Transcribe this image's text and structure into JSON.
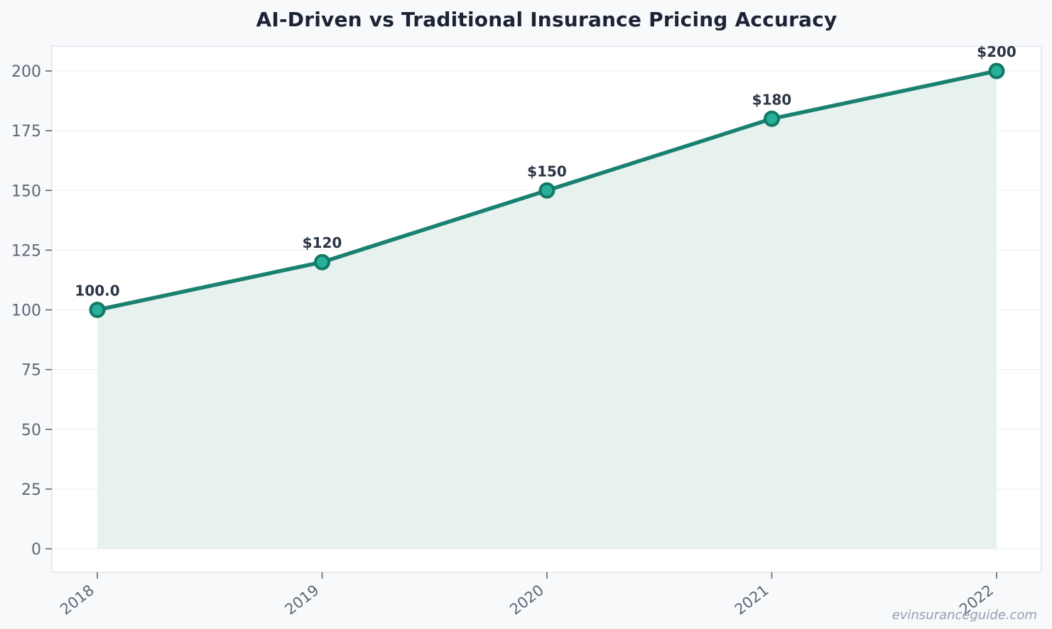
{
  "page": {
    "watermark": "evinsuranceguide.com"
  },
  "chart_data": {
    "type": "area",
    "title": "AI-Driven vs Traditional Insurance Pricing Accuracy",
    "categories": [
      "2018",
      "2019",
      "2020",
      "2021",
      "2022"
    ],
    "values": [
      100,
      120,
      150,
      180,
      200
    ],
    "point_labels": [
      "100.0",
      "$120",
      "$150",
      "$180",
      "$200"
    ],
    "xlabel": "",
    "ylabel": "",
    "ylim": [
      0,
      210
    ],
    "yticks": [
      0,
      25,
      50,
      75,
      100,
      125,
      150,
      175,
      200
    ],
    "grid": true,
    "legend": "none",
    "colors": {
      "page_bg": "#f7f9fb",
      "plot_bg": "#ffffff",
      "plot_border": "#e1e5ea",
      "grid": "#eef1f4",
      "tick_mark": "#5b6472",
      "tick_label": "#5d6675",
      "title_color": "#1b2335",
      "line": "#1a8170",
      "marker_fill": "#29b09a",
      "marker_stroke": "#117a66",
      "area_fill": "#e7f1ee",
      "data_label": "#2b3544",
      "watermark": "#959dae"
    }
  }
}
